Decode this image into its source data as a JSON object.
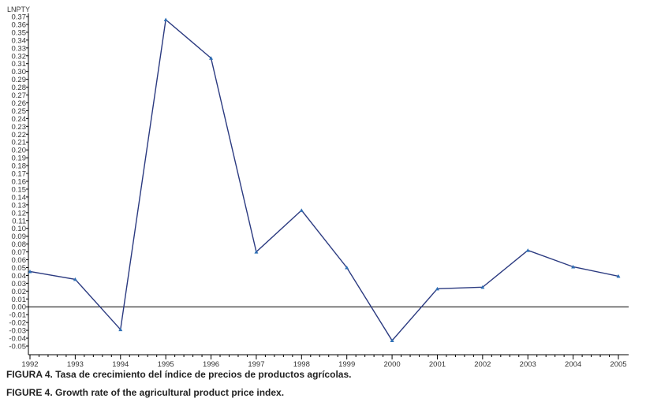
{
  "chart_data": {
    "type": "line",
    "title": "",
    "ylabel": "LNPTY",
    "xlabel": "",
    "x": [
      1992,
      1993,
      1994,
      1995,
      1996,
      1997,
      1998,
      1999,
      2000,
      2001,
      2002,
      2003,
      2004,
      2005
    ],
    "series": [
      {
        "name": "LNPTY",
        "values": [
          0.045,
          0.035,
          -0.029,
          0.366,
          0.317,
          0.07,
          0.123,
          0.05,
          -0.043,
          0.023,
          0.025,
          0.072,
          0.051,
          0.039
        ]
      }
    ],
    "ylim": [
      -0.05,
      0.37
    ],
    "ytick_step": 0.01,
    "xlim": [
      1992,
      2005.07
    ],
    "xtick_labels": [
      "1992",
      "1993",
      "1994",
      "1995",
      "1996",
      "1997",
      "1998",
      "1999",
      "2000",
      "2001",
      "2002",
      "2003",
      "2004",
      "2005"
    ],
    "reference_line": 0,
    "grid": false,
    "line_color": "#2b3a80",
    "marker_color": "#2e6fb5"
  },
  "captions": {
    "es": "FIGURA 4. Tasa de crecimiento del índice de precios de productos agrícolas.",
    "en": "FIGURE 4. Growth rate of the agricultural product price index."
  }
}
